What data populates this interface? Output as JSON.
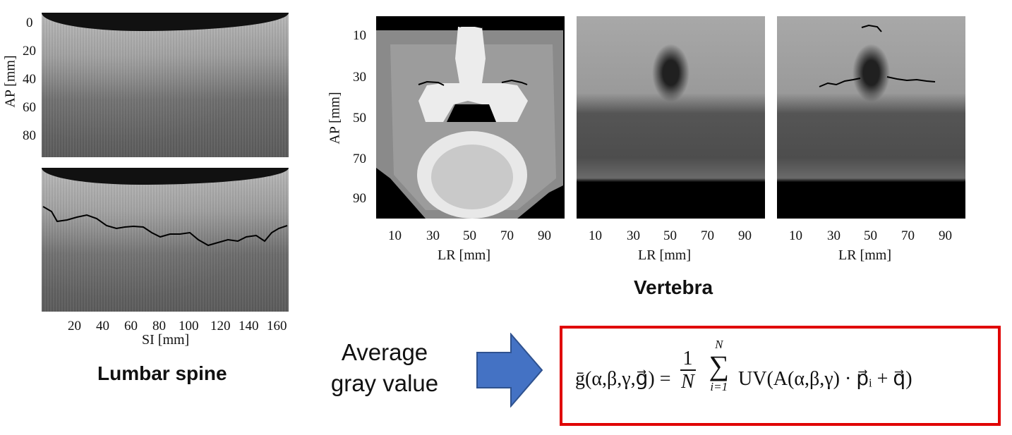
{
  "lumbar": {
    "caption": "Lumbar spine",
    "ylabel": "AP [mm]",
    "xlabel": "SI [mm]",
    "yticks": [
      "0",
      "20",
      "40",
      "60",
      "80"
    ],
    "xticks": [
      "20",
      "40",
      "60",
      "80",
      "100",
      "120",
      "140",
      "160"
    ]
  },
  "vertebra": {
    "caption": "Vertebra",
    "ylabel": "AP [mm]",
    "xlabel": "LR [mm]",
    "yticks": [
      "10",
      "30",
      "50",
      "70",
      "90"
    ],
    "xticks": [
      "10",
      "30",
      "50",
      "70",
      "90"
    ]
  },
  "arrow_label": [
    "Average",
    "gray value"
  ],
  "colors": {
    "arrow": "#4472c4",
    "box": "#e00000"
  },
  "formula": {
    "lhs": "ḡ(α,β,γ,g⃗) =",
    "frac_num": "1",
    "frac_den": "N",
    "sum_top": "N",
    "sum_bottom": "i=1",
    "body": "UV(A(α,β,γ) · p⃗ᵢ + q⃗)"
  }
}
